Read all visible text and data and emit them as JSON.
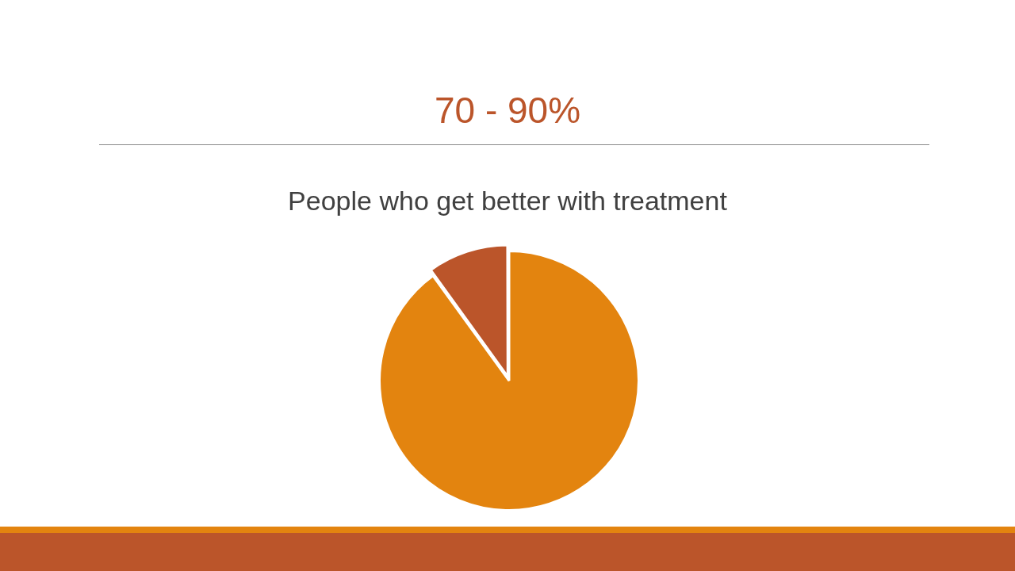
{
  "chart_data": {
    "type": "pie",
    "title": "70 - 90%",
    "subtitle": "People who get better with treatment",
    "categories": [
      null,
      null
    ],
    "values": [
      90,
      10
    ],
    "colors": [
      "#e3840f",
      "#bb552a"
    ],
    "legend": false
  }
}
